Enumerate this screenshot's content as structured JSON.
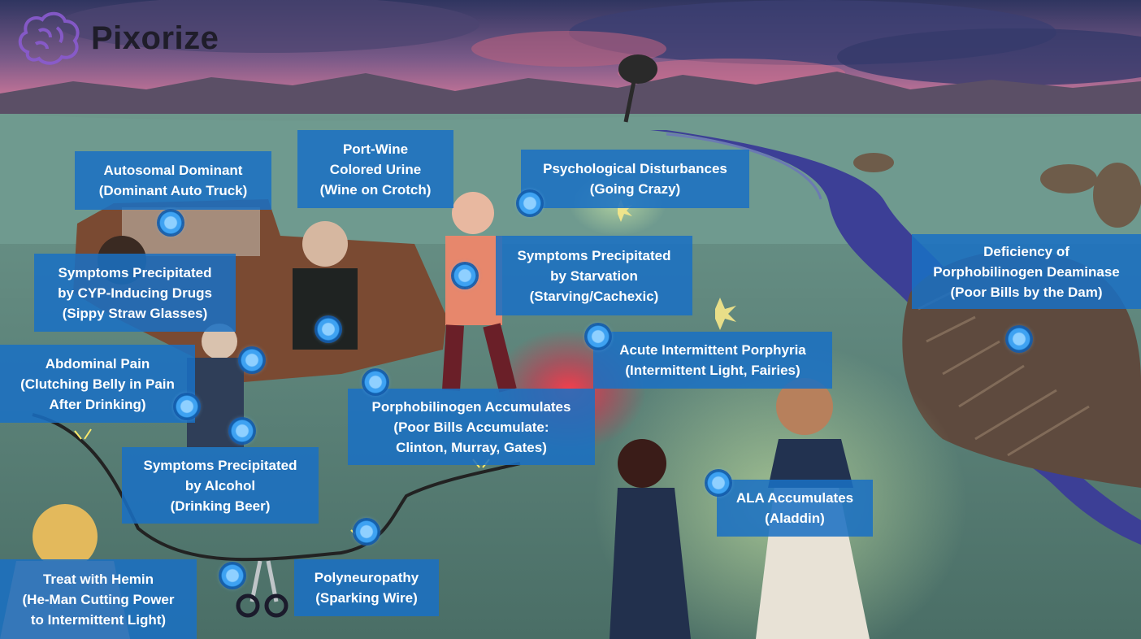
{
  "brand": {
    "name": "Pixorize",
    "logo_icon": "brain-icon",
    "logo_color": "#8a5bd0"
  },
  "colors": {
    "label_bg": "#1a70c4",
    "marker": "#3ea2f2",
    "sky_top": "#2f3560",
    "sky_glow": "#d2789a",
    "grass": "#5d877b",
    "river": "#3c3f96"
  },
  "labels": {
    "autosomal": [
      "Autosomal Dominant",
      "(Dominant Auto Truck)"
    ],
    "urine": [
      "Port-Wine",
      "Colored Urine",
      "(Wine on Crotch)"
    ],
    "psych": [
      "Psychological Disturbances",
      "(Going Crazy)"
    ],
    "cyp": [
      "Symptoms Precipitated",
      "by CYP-Inducing Drugs",
      "(Sippy Straw Glasses)"
    ],
    "starvation": [
      "Symptoms Precipitated",
      "by Starvation",
      "(Starving/Cachexic)"
    ],
    "deficiency": [
      "Deficiency of",
      "Porphobilinogen Deaminase",
      "(Poor Bills by the Dam)"
    ],
    "abdominal": [
      "Abdominal Pain",
      "(Clutching Belly in Pain",
      "After Drinking)"
    ],
    "aip": [
      "Acute Intermittent Porphyria",
      "(Intermittent Light, Fairies)"
    ],
    "pbg": [
      "Porphobilinogen Accumulates",
      "(Poor Bills Accumulate:",
      "Clinton, Murray, Gates)"
    ],
    "alcohol": [
      "Symptoms Precipitated",
      "by Alcohol",
      "(Drinking Beer)"
    ],
    "ala": [
      "ALA Accumulates",
      "(Aladdin)"
    ],
    "hemin": [
      "Treat with Hemin",
      "(He-Man Cutting Power",
      "to Intermittent Light)"
    ],
    "polyneuropathy": [
      "Polyneuropathy",
      "(Sparking Wire)"
    ]
  }
}
